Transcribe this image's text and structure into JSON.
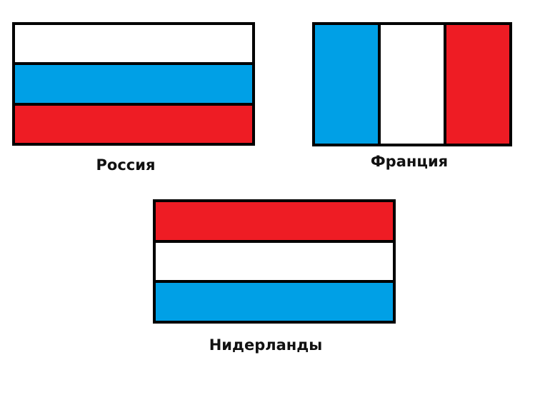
{
  "colors": {
    "white": "#ffffff",
    "blue": "#00a0e6",
    "red": "#ee1c24",
    "outline": "#000000"
  },
  "flags": [
    {
      "caption": "Россия",
      "orientation": "horizontal",
      "stripes": [
        "#ffffff",
        "#00a0e6",
        "#ee1c24"
      ]
    },
    {
      "caption": "Франция",
      "orientation": "vertical",
      "stripes": [
        "#00a0e6",
        "#ffffff",
        "#ee1c24"
      ]
    },
    {
      "caption": "Нидерланды",
      "orientation": "horizontal",
      "stripes": [
        "#ee1c24",
        "#ffffff",
        "#00a0e6"
      ]
    }
  ]
}
